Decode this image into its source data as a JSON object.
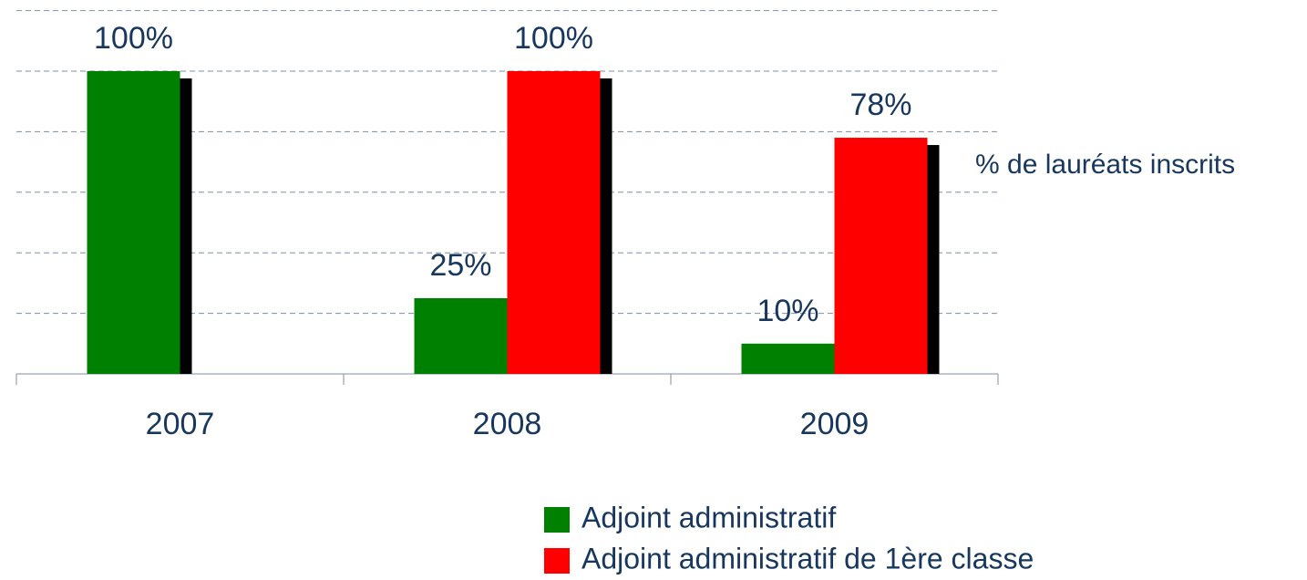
{
  "chart_data": {
    "type": "bar",
    "categories": [
      "2007",
      "2008",
      "2009"
    ],
    "series": [
      {
        "name": "Adjoint administratif",
        "color": "#008000",
        "values": [
          100,
          25,
          10
        ],
        "value_labels": [
          "100%",
          "25%",
          "10%"
        ]
      },
      {
        "name": "Adjoint administratif de 1ère classe",
        "color": "#ff0000",
        "values": [
          null,
          100,
          78
        ],
        "value_labels": [
          null,
          "100%",
          "78%"
        ]
      }
    ],
    "annotation": "% de lauréats inscrits",
    "ylim": [
      0,
      120
    ],
    "yticks": [
      0,
      20,
      40,
      60,
      80,
      100,
      120
    ],
    "grid": true
  }
}
